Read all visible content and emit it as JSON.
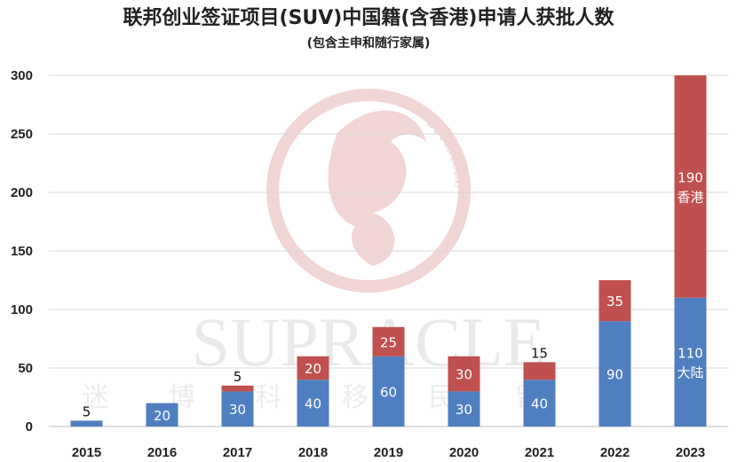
{
  "chart_data": {
    "type": "bar",
    "stacked": true,
    "title": "联邦创业签证项目(SUV)中国籍(含香港)申请人获批人数",
    "subtitle": "(包含主申和随行家属)",
    "categories": [
      "2015",
      "2016",
      "2017",
      "2018",
      "2019",
      "2020",
      "2021",
      "2022",
      "2023"
    ],
    "series": [
      {
        "name": "大陆",
        "color": "#4f7fc0",
        "values": [
          5,
          20,
          30,
          40,
          60,
          30,
          40,
          90,
          110
        ],
        "labels": [
          "5",
          "20",
          "30",
          "40",
          "60",
          "30",
          "40",
          "90",
          "110\n大陆"
        ]
      },
      {
        "name": "香港",
        "color": "#c0504d",
        "values": [
          0,
          0,
          5,
          20,
          25,
          30,
          15,
          35,
          190
        ],
        "labels": [
          "",
          "",
          "5",
          "20",
          "25",
          "30",
          "15",
          "35",
          "190\n香港"
        ]
      }
    ],
    "ylim": [
      0,
      300
    ],
    "yticks": [
      0,
      50,
      100,
      150,
      200,
      250,
      300
    ],
    "grid": true,
    "legend": "none"
  },
  "watermark": {
    "text": "SUPRACLE",
    "arc_text": "SUPRACLE",
    "sub_text": "迷 博 科 移 民 留 学",
    "color": "#e8b4b4"
  }
}
